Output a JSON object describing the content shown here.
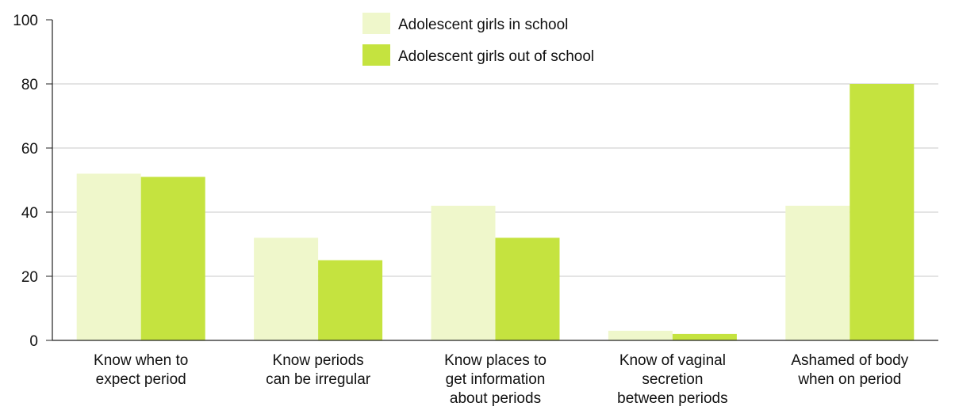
{
  "chart_data": {
    "type": "bar",
    "categories": [
      [
        "Know when to",
        "expect period"
      ],
      [
        "Know periods",
        "can be irregular"
      ],
      [
        "Know places to",
        "get information",
        "about periods"
      ],
      [
        "Know of vaginal",
        "secretion",
        "between periods"
      ],
      [
        "Ashamed of body",
        "when on period"
      ]
    ],
    "series": [
      {
        "name": "Adolescent girls in school",
        "color": "#eff7cb",
        "values": [
          52,
          32,
          42,
          3,
          42
        ]
      },
      {
        "name": "Adolescent girls out of school",
        "color": "#c5e33f",
        "values": [
          51,
          25,
          32,
          2,
          80
        ]
      }
    ],
    "ylim": [
      0,
      100
    ],
    "yticks": [
      "0",
      "20",
      "40",
      "60",
      "80",
      "100"
    ],
    "grid": true,
    "legend": "top-center",
    "colors": {
      "axis": "#222222",
      "grid": "#c8c8c8"
    }
  }
}
